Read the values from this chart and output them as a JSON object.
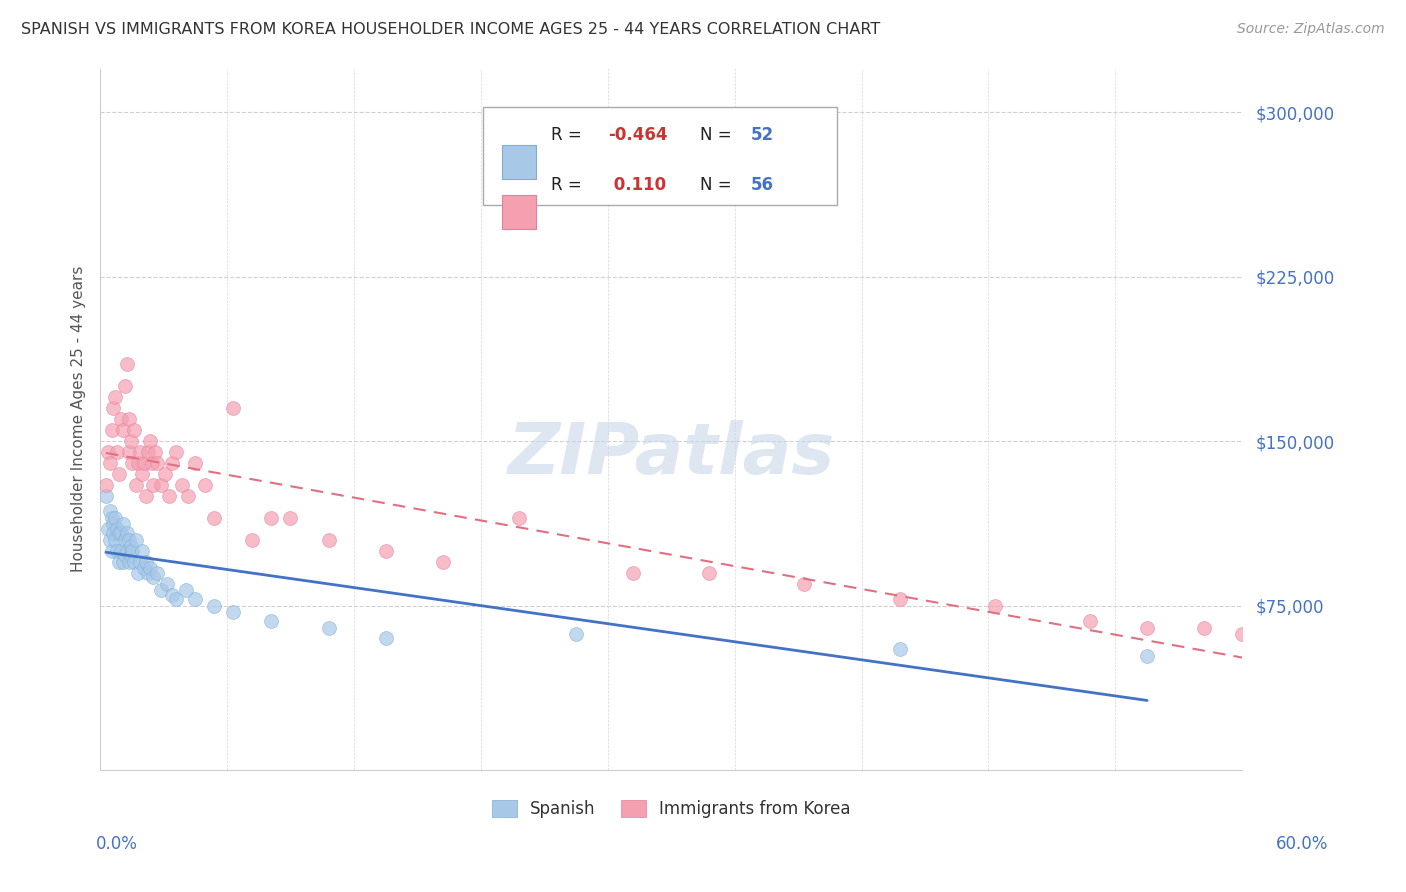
{
  "title": "SPANISH VS IMMIGRANTS FROM KOREA HOUSEHOLDER INCOME AGES 25 - 44 YEARS CORRELATION CHART",
  "source": "Source: ZipAtlas.com",
  "ylabel": "Householder Income Ages 25 - 44 years",
  "watermark": "ZIPatlas",
  "yticks": [
    0,
    75000,
    150000,
    225000,
    300000
  ],
  "ytick_labels": [
    "",
    "$75,000",
    "$150,000",
    "$225,000",
    "$300,000"
  ],
  "xlim": [
    0.0,
    0.6
  ],
  "ylim": [
    0,
    320000
  ],
  "color_spanish": "#a8c8e8",
  "color_korean": "#f4a0b0",
  "color_sp_line": "#4472c4",
  "color_ko_line": "#e07080",
  "color_axis_labels": "#4472c4",
  "color_ytick_labels": "#4472c4",
  "spanish_x": [
    0.003,
    0.004,
    0.005,
    0.005,
    0.006,
    0.006,
    0.007,
    0.007,
    0.008,
    0.008,
    0.009,
    0.009,
    0.01,
    0.01,
    0.011,
    0.011,
    0.012,
    0.012,
    0.013,
    0.013,
    0.014,
    0.014,
    0.015,
    0.015,
    0.016,
    0.016,
    0.017,
    0.018,
    0.019,
    0.02,
    0.021,
    0.022,
    0.023,
    0.024,
    0.025,
    0.026,
    0.028,
    0.03,
    0.032,
    0.035,
    0.038,
    0.04,
    0.045,
    0.05,
    0.06,
    0.07,
    0.09,
    0.12,
    0.15,
    0.25,
    0.42,
    0.55
  ],
  "spanish_y": [
    125000,
    110000,
    105000,
    118000,
    100000,
    115000,
    112000,
    108000,
    115000,
    105000,
    100000,
    110000,
    108000,
    95000,
    100000,
    108000,
    112000,
    95000,
    105000,
    98000,
    100000,
    108000,
    95000,
    105000,
    98000,
    102000,
    100000,
    95000,
    105000,
    90000,
    95000,
    100000,
    92000,
    95000,
    90000,
    92000,
    88000,
    90000,
    82000,
    85000,
    80000,
    78000,
    82000,
    78000,
    75000,
    72000,
    68000,
    65000,
    60000,
    62000,
    55000,
    52000
  ],
  "korean_x": [
    0.003,
    0.004,
    0.005,
    0.006,
    0.007,
    0.008,
    0.009,
    0.01,
    0.011,
    0.012,
    0.013,
    0.014,
    0.015,
    0.015,
    0.016,
    0.017,
    0.018,
    0.019,
    0.02,
    0.021,
    0.022,
    0.023,
    0.024,
    0.025,
    0.026,
    0.027,
    0.028,
    0.029,
    0.03,
    0.032,
    0.034,
    0.036,
    0.038,
    0.04,
    0.043,
    0.046,
    0.05,
    0.055,
    0.06,
    0.07,
    0.08,
    0.09,
    0.1,
    0.12,
    0.15,
    0.18,
    0.22,
    0.28,
    0.32,
    0.37,
    0.42,
    0.47,
    0.52,
    0.55,
    0.58,
    0.6
  ],
  "korean_y": [
    130000,
    145000,
    140000,
    155000,
    165000,
    170000,
    145000,
    135000,
    160000,
    155000,
    175000,
    185000,
    160000,
    145000,
    150000,
    140000,
    155000,
    130000,
    140000,
    145000,
    135000,
    140000,
    125000,
    145000,
    150000,
    140000,
    130000,
    145000,
    140000,
    130000,
    135000,
    125000,
    140000,
    145000,
    130000,
    125000,
    140000,
    130000,
    115000,
    165000,
    105000,
    115000,
    115000,
    105000,
    100000,
    95000,
    115000,
    90000,
    90000,
    85000,
    78000,
    75000,
    68000,
    65000,
    65000,
    62000
  ]
}
